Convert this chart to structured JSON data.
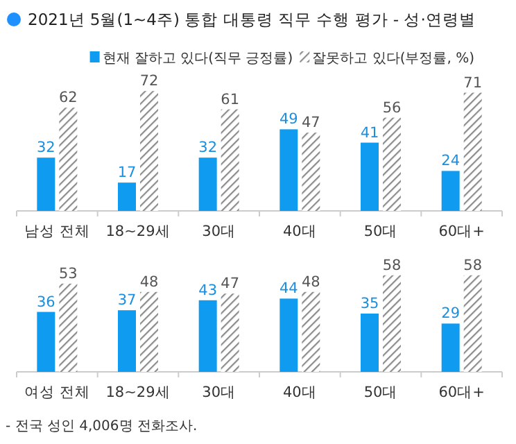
{
  "chart_data": [
    {
      "type": "bar",
      "title": "2021년 5월(1~4주) 통합 대통령 직무 수행 평가 - 성·연령별",
      "legend": "top right",
      "data_labels": true,
      "categories": [
        "남성 전체",
        "18~29세",
        "30대",
        "40대",
        "50대",
        "60대+"
      ],
      "series": [
        {
          "name": "현재 잘하고 있다(직무 긍정률)",
          "color": "#0f9cf0",
          "values": [
            32,
            17,
            32,
            49,
            41,
            24
          ]
        },
        {
          "name": "잘못하고 있다(부정률, %)",
          "color": "#8c8c8c",
          "values": [
            62,
            72,
            61,
            47,
            56,
            71
          ]
        }
      ]
    },
    {
      "type": "bar",
      "data_labels": true,
      "annotations": [
        "- 전국 성인 4,006명 전화조사."
      ],
      "categories": [
        "여성 전체",
        "18~29세",
        "30대",
        "40대",
        "50대",
        "60대+"
      ],
      "series": [
        {
          "color": "#0f9cf0",
          "values": [
            36,
            37,
            43,
            44,
            35,
            29
          ]
        },
        {
          "color": "#8c8c8c",
          "values": [
            53,
            48,
            47,
            48,
            58,
            58
          ]
        }
      ]
    }
  ]
}
